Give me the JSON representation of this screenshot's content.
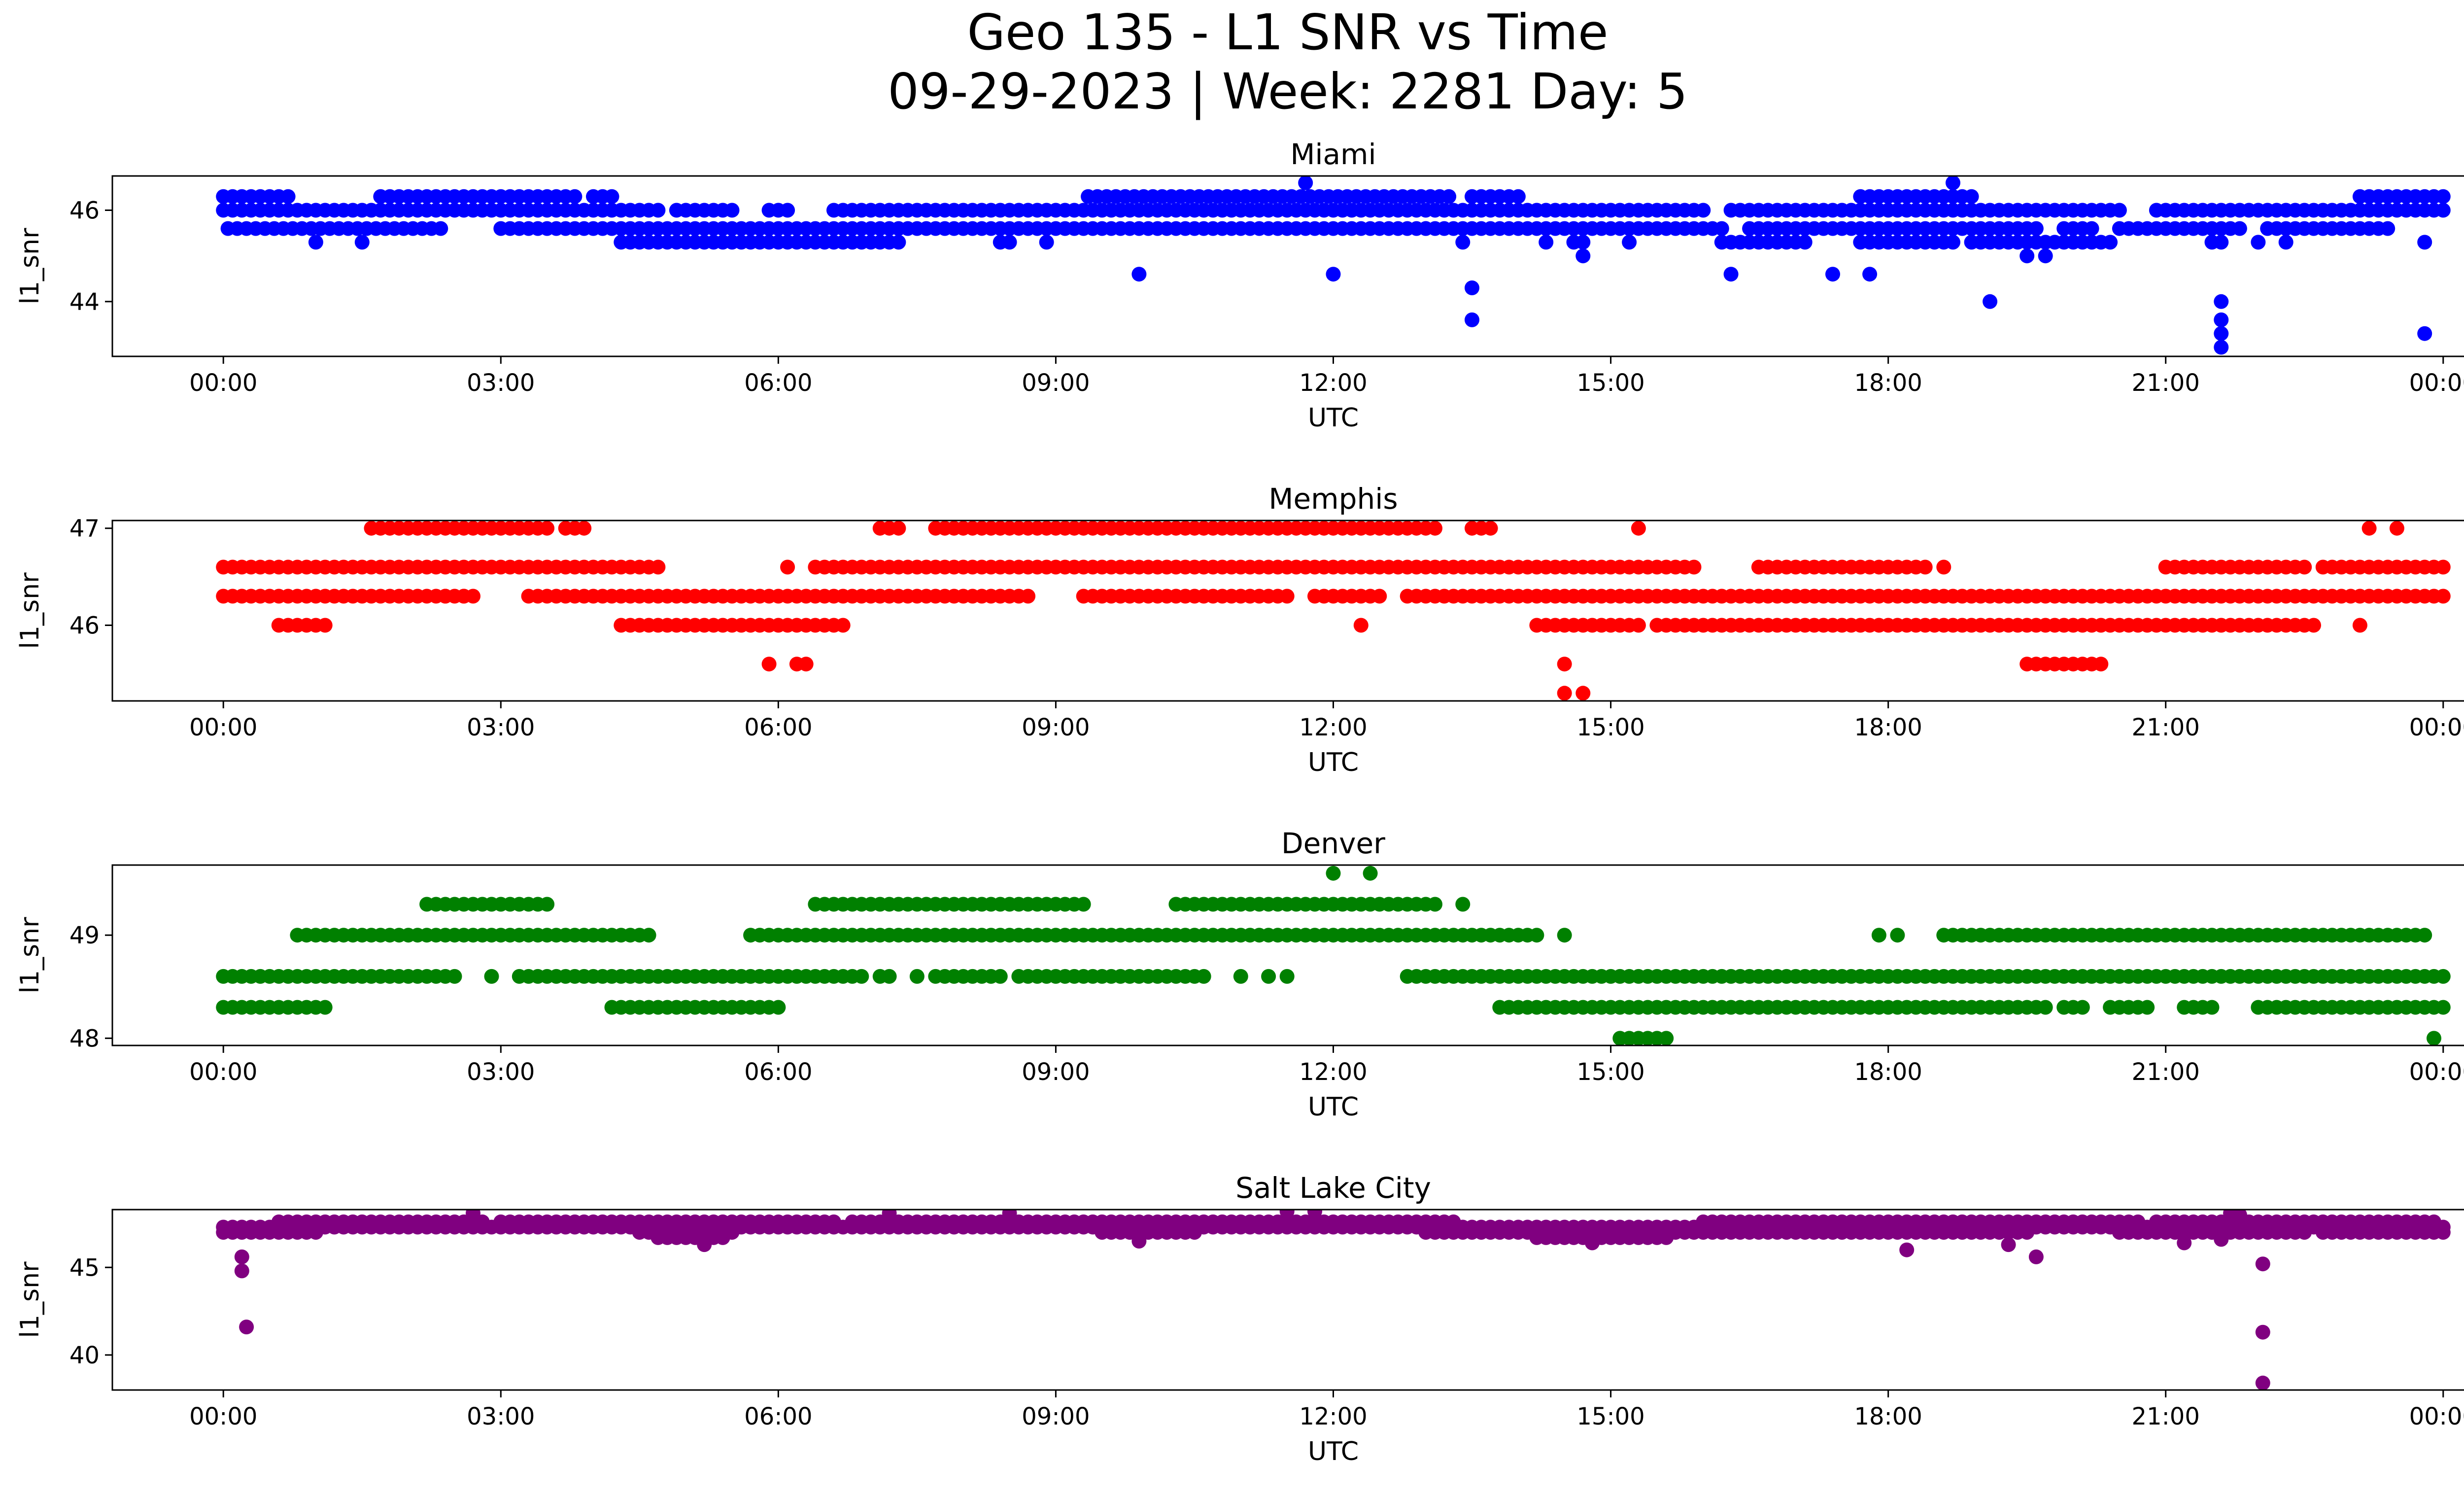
{
  "figure": {
    "title_line1": "Geo 135 - L1 SNR vs Time",
    "title_line2": "09-29-2023 | Week: 2281 Day: 5"
  },
  "chart_data": [
    {
      "type": "scatter",
      "title": "Miami",
      "color": "#0000ff",
      "xlabel": "UTC",
      "ylabel": "l1_snr",
      "x_ticks": [
        "00:00",
        "03:00",
        "06:00",
        "09:00",
        "12:00",
        "15:00",
        "18:00",
        "21:00",
        "00:00"
      ],
      "y_ticks": [
        "44",
        "46"
      ],
      "xlim_hours": [
        -1.2,
        25.2
      ],
      "ylim": [
        42.8,
        46.75
      ],
      "levels": [
        46.3,
        46.0,
        45.6,
        45.3
      ],
      "runs": [
        [
          [
            0.0,
            0.7,
            46.3
          ],
          [
            1.7,
            3.85,
            46.3
          ],
          [
            4.0,
            4.2,
            46.3
          ],
          [
            9.35,
            13.3,
            46.3
          ],
          [
            13.5,
            14.0,
            46.3
          ],
          [
            17.7,
            18.5,
            46.3
          ],
          [
            18.6,
            18.9,
            46.3
          ],
          [
            23.1,
            24.0,
            46.3
          ]
        ],
        [
          [
            0.0,
            4.7,
            46.0
          ],
          [
            4.9,
            5.5,
            46.0
          ],
          [
            5.9,
            6.1,
            46.0
          ],
          [
            6.6,
            6.9,
            46.0
          ],
          [
            7.0,
            16.0,
            46.0
          ],
          [
            16.3,
            20.5,
            46.0
          ],
          [
            20.9,
            24.0,
            46.0
          ]
        ],
        [
          [
            0.05,
            2.35,
            45.6
          ],
          [
            3.0,
            4.1,
            45.6
          ],
          [
            4.2,
            13.0,
            45.6
          ],
          [
            13.0,
            16.2,
            45.6
          ],
          [
            16.5,
            18.6,
            45.6
          ],
          [
            18.7,
            19.6,
            45.6
          ],
          [
            19.9,
            20.2,
            45.6
          ],
          [
            20.5,
            21.2,
            45.6
          ],
          [
            21.3,
            21.8,
            45.6
          ],
          [
            22.1,
            23.4,
            45.6
          ]
        ],
        [
          [
            4.3,
            7.3,
            45.3
          ],
          [
            16.2,
            17.1,
            45.3
          ],
          [
            17.7,
            18.7,
            45.3
          ],
          [
            18.9,
            19.8,
            45.3
          ],
          [
            19.9,
            20.4,
            45.3
          ]
        ]
      ],
      "points": [
        [
          1.0,
          45.3
        ],
        [
          1.5,
          45.3
        ],
        [
          8.4,
          45.3
        ],
        [
          8.5,
          45.3
        ],
        [
          8.9,
          45.3
        ],
        [
          13.4,
          45.3
        ],
        [
          14.3,
          45.3
        ],
        [
          14.6,
          45.3
        ],
        [
          14.7,
          45.3
        ],
        [
          15.2,
          45.3
        ],
        [
          21.5,
          45.3
        ],
        [
          21.6,
          45.3
        ],
        [
          22.0,
          45.3
        ],
        [
          22.3,
          45.3
        ],
        [
          23.8,
          45.3
        ],
        [
          19.5,
          45.0
        ],
        [
          19.7,
          45.0
        ],
        [
          14.7,
          45.0
        ],
        [
          11.7,
          46.6
        ],
        [
          18.7,
          46.6
        ],
        [
          9.9,
          44.6
        ],
        [
          12.0,
          44.6
        ],
        [
          16.3,
          44.6
        ],
        [
          17.4,
          44.6
        ],
        [
          17.8,
          44.6
        ],
        [
          13.5,
          44.3
        ],
        [
          13.5,
          43.6
        ],
        [
          19.1,
          44.0
        ],
        [
          21.6,
          44.0
        ],
        [
          21.6,
          43.6
        ],
        [
          21.6,
          43.3
        ],
        [
          21.6,
          43.0
        ],
        [
          23.8,
          43.3
        ]
      ]
    },
    {
      "type": "scatter",
      "title": "Memphis",
      "color": "#ff0000",
      "xlabel": "UTC",
      "ylabel": "l1_snr",
      "x_ticks": [
        "00:00",
        "03:00",
        "06:00",
        "09:00",
        "12:00",
        "15:00",
        "18:00",
        "21:00",
        "00:00"
      ],
      "y_ticks": [
        "46",
        "47"
      ],
      "xlim_hours": [
        -1.2,
        25.2
      ],
      "ylim": [
        45.22,
        47.08
      ],
      "levels": [
        47.0,
        46.6,
        46.3,
        46.0,
        45.6,
        45.3
      ],
      "runs": [
        [
          [
            1.6,
            3.5,
            47.0
          ],
          [
            3.7,
            3.9,
            47.0
          ],
          [
            7.1,
            7.3,
            47.0
          ],
          [
            7.7,
            12.2,
            47.0
          ],
          [
            12.3,
            13.1,
            47.0
          ],
          [
            13.5,
            13.7,
            47.0
          ],
          [
            23.2,
            23.25,
            47.0
          ],
          [
            23.5,
            23.55,
            47.0
          ]
        ],
        [
          [
            0.0,
            4.7,
            46.6
          ],
          [
            6.1,
            6.15,
            46.6
          ],
          [
            6.4,
            15.9,
            46.6
          ],
          [
            16.6,
            18.4,
            46.6
          ],
          [
            18.6,
            18.65,
            46.6
          ],
          [
            21.0,
            22.5,
            46.6
          ],
          [
            22.7,
            24.0,
            46.6
          ]
        ],
        [
          [
            0.0,
            2.7,
            46.3
          ],
          [
            3.3,
            8.7,
            46.3
          ],
          [
            9.3,
            11.5,
            46.3
          ],
          [
            11.8,
            12.5,
            46.3
          ],
          [
            12.8,
            24.0,
            46.3
          ]
        ],
        [
          [
            0.6,
            1.1,
            46.0
          ],
          [
            4.3,
            6.7,
            46.0
          ],
          [
            14.2,
            14.5,
            46.0
          ],
          [
            14.6,
            15.3,
            46.0
          ],
          [
            15.5,
            22.6,
            46.0
          ]
        ],
        [
          [
            19.5,
            20.3,
            45.6
          ]
        ]
      ],
      "points": [
        [
          2.4,
          46.3
        ],
        [
          2.6,
          46.3
        ],
        [
          5.9,
          45.6
        ],
        [
          6.2,
          45.6
        ],
        [
          6.3,
          45.6
        ],
        [
          12.3,
          46.0
        ],
        [
          23.1,
          46.0
        ],
        [
          14.5,
          45.6
        ],
        [
          14.5,
          45.3
        ],
        [
          14.7,
          45.3
        ],
        [
          15.3,
          47.0
        ]
      ]
    },
    {
      "type": "scatter",
      "title": "Denver",
      "color": "#008000",
      "xlabel": "UTC",
      "ylabel": "l1_snr",
      "x_ticks": [
        "00:00",
        "03:00",
        "06:00",
        "09:00",
        "12:00",
        "15:00",
        "18:00",
        "21:00",
        "00:00"
      ],
      "y_ticks": [
        "48",
        "49"
      ],
      "xlim_hours": [
        -1.2,
        25.2
      ],
      "ylim": [
        47.93,
        49.68
      ],
      "levels": [
        49.3,
        49.0,
        48.6,
        48.3,
        48.0
      ],
      "runs": [
        [
          [
            2.2,
            3.5,
            49.3
          ],
          [
            6.4,
            9.2,
            49.3
          ],
          [
            10.3,
            13.1,
            49.3
          ]
        ],
        [
          [
            0.8,
            4.6,
            49.0
          ],
          [
            5.7,
            5.8,
            49.0
          ],
          [
            5.9,
            14.2,
            49.0
          ],
          [
            18.6,
            22.5,
            49.0
          ],
          [
            22.6,
            23.5,
            49.0
          ],
          [
            23.6,
            23.8,
            49.0
          ]
        ],
        [
          [
            0.0,
            2.5,
            48.6
          ],
          [
            3.2,
            6.9,
            48.6
          ],
          [
            7.1,
            7.2,
            48.6
          ],
          [
            7.7,
            8.4,
            48.6
          ],
          [
            8.6,
            10.6,
            48.6
          ],
          [
            12.8,
            13.0,
            48.6
          ],
          [
            13.1,
            24.0,
            48.6
          ]
        ],
        [
          [
            0.0,
            1.1,
            48.3
          ],
          [
            4.2,
            4.5,
            48.3
          ],
          [
            4.6,
            6.0,
            48.3
          ],
          [
            13.8,
            19.7,
            48.3
          ],
          [
            19.9,
            20.1,
            48.3
          ],
          [
            20.4,
            20.8,
            48.3
          ],
          [
            21.3,
            21.5,
            48.3
          ],
          [
            22.0,
            24.0,
            48.3
          ]
        ],
        [
          [
            15.1,
            15.6,
            48.0
          ]
        ]
      ],
      "points": [
        [
          2.9,
          48.6
        ],
        [
          11.0,
          48.6
        ],
        [
          11.3,
          48.6
        ],
        [
          11.5,
          48.6
        ],
        [
          7.5,
          48.6
        ],
        [
          9.3,
          49.3
        ],
        [
          13.4,
          49.3
        ],
        [
          14.5,
          49.0
        ],
        [
          17.9,
          49.0
        ],
        [
          18.1,
          49.0
        ],
        [
          21.2,
          48.3
        ],
        [
          23.9,
          48.0
        ],
        [
          12.0,
          49.6
        ],
        [
          12.4,
          49.6
        ]
      ]
    },
    {
      "type": "scatter",
      "title": "Salt Lake City",
      "color": "#800080",
      "xlabel": "UTC",
      "ylabel": "l1_snr",
      "x_ticks": [
        "00:00",
        "03:00",
        "06:00",
        "09:00",
        "12:00",
        "15:00",
        "18:00",
        "21:00",
        "00:00"
      ],
      "y_ticks": [
        "40",
        "45"
      ],
      "xlim_hours": [
        -1.2,
        25.2
      ],
      "ylim": [
        38.0,
        48.3
      ],
      "levels": [
        47.6,
        47.3,
        47.0,
        46.7
      ],
      "runs": [
        [
          [
            0.6,
            2.8,
            47.6
          ],
          [
            3.0,
            6.6,
            47.6
          ],
          [
            6.8,
            10.3,
            47.6
          ],
          [
            10.4,
            13.3,
            47.6
          ],
          [
            16.0,
            20.7,
            47.6
          ],
          [
            20.9,
            23.9,
            47.6
          ]
        ],
        [
          [
            0.0,
            24.0,
            47.3
          ]
        ],
        [
          [
            0.0,
            1.0,
            47.0
          ],
          [
            4.5,
            5.5,
            47.0
          ],
          [
            9.5,
            10.5,
            47.0
          ],
          [
            13.0,
            19.5,
            47.0
          ],
          [
            20.5,
            22.5,
            47.0
          ],
          [
            22.7,
            24.0,
            47.0
          ]
        ],
        [
          [
            14.2,
            15.6,
            46.7
          ],
          [
            4.7,
            5.4,
            46.7
          ]
        ]
      ],
      "points": [
        [
          0.2,
          45.6
        ],
        [
          0.2,
          44.8
        ],
        [
          0.25,
          41.6
        ],
        [
          22.05,
          45.2
        ],
        [
          22.05,
          41.3
        ],
        [
          22.05,
          38.4
        ],
        [
          18.2,
          46.0
        ],
        [
          19.6,
          45.6
        ],
        [
          19.3,
          46.3
        ],
        [
          5.2,
          46.3
        ],
        [
          9.9,
          46.5
        ],
        [
          14.8,
          46.4
        ],
        [
          21.2,
          46.4
        ],
        [
          21.6,
          46.6
        ],
        [
          2.7,
          48.1
        ],
        [
          7.2,
          48.1
        ],
        [
          8.5,
          48.1
        ],
        [
          11.5,
          48.2
        ],
        [
          11.8,
          48.2
        ],
        [
          21.7,
          48.1
        ],
        [
          21.8,
          48.0
        ]
      ]
    }
  ]
}
